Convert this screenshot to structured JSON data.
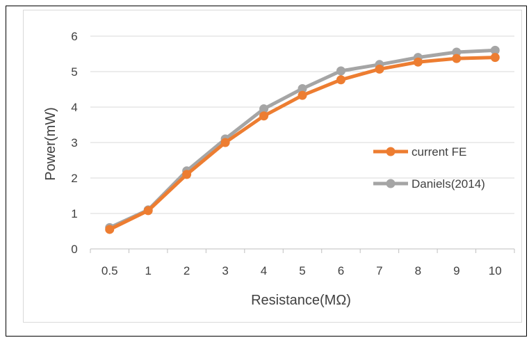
{
  "chart_data": {
    "type": "line",
    "title": "",
    "xlabel": "Resistance(MΩ)",
    "ylabel": "Power(mW)",
    "categories": [
      "0.5",
      "1",
      "2",
      "3",
      "4",
      "5",
      "6",
      "7",
      "8",
      "9",
      "10"
    ],
    "ylim": [
      0,
      6
    ],
    "yticks": [
      "0",
      "1",
      "2",
      "3",
      "4",
      "5",
      "6"
    ],
    "grid": true,
    "legend_position": "right",
    "series": [
      {
        "name": "current FE",
        "color": "#ED7D31",
        "values": [
          0.55,
          1.08,
          2.1,
          3.0,
          3.75,
          4.33,
          4.77,
          5.07,
          5.27,
          5.37,
          5.4
        ]
      },
      {
        "name": "Daniels(2014)",
        "color": "#A5A5A5",
        "values": [
          0.6,
          1.1,
          2.2,
          3.1,
          3.95,
          4.52,
          5.02,
          5.2,
          5.4,
          5.55,
          5.6
        ]
      }
    ]
  }
}
